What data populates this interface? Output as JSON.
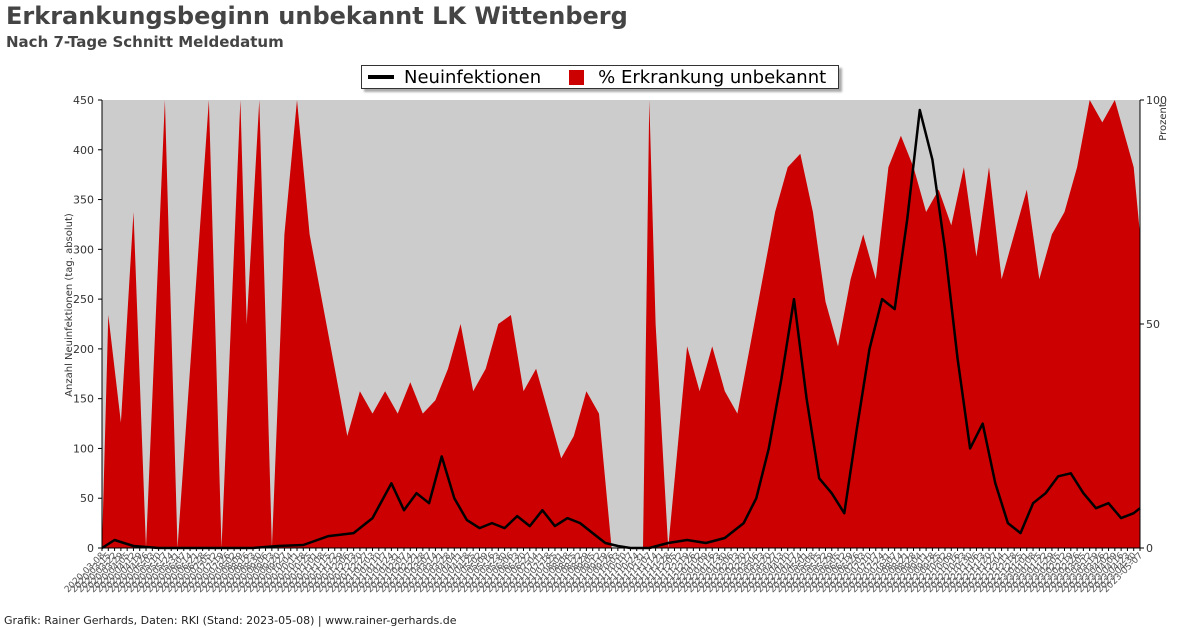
{
  "header": {
    "title": "Erkrankungsbeginn unbekannt LK Wittenberg",
    "subtitle": "Nach 7-Tage Schnitt Meldedatum"
  },
  "footer": {
    "credit": "Grafik: Rainer Gerhards, Daten: RKI (Stand: 2023-05-08) | www.rainer-gerhards.de"
  },
  "chart_data": {
    "type": "bar",
    "title": "Erkrankungsbeginn unbekannt LK Wittenberg",
    "subtitle": "Nach 7-Tage Schnitt Meldedatum",
    "ylabel": "Anzahl Neuinfektionen (tag. absolut)",
    "y2label": "Prozent",
    "ylim": [
      0,
      450
    ],
    "y2lim": [
      0,
      100
    ],
    "yticks": [
      0,
      50,
      100,
      150,
      200,
      250,
      300,
      350,
      400,
      450
    ],
    "y2ticks": [
      0,
      50,
      100
    ],
    "xlim_dates": [
      "2020-03-08",
      "2023-05-07"
    ],
    "grid": false,
    "legend_position": "top-center",
    "colors": {
      "line": "#000000",
      "area": "#cc0000",
      "plot_background": "#cccccc"
    },
    "series": [
      {
        "name": "Neuinfektionen",
        "kind": "line",
        "axis": "left",
        "points": [
          [
            "2020-03-08",
            0
          ],
          [
            "2020-03-22",
            8
          ],
          [
            "2020-04-12",
            2
          ],
          [
            "2020-05-10",
            0
          ],
          [
            "2020-08-23",
            0
          ],
          [
            "2020-09-20",
            2
          ],
          [
            "2020-10-18",
            3
          ],
          [
            "2020-11-15",
            12
          ],
          [
            "2020-12-13",
            15
          ],
          [
            "2021-01-03",
            30
          ],
          [
            "2021-01-24",
            65
          ],
          [
            "2021-02-07",
            38
          ],
          [
            "2021-02-21",
            55
          ],
          [
            "2021-03-07",
            45
          ],
          [
            "2021-03-21",
            92
          ],
          [
            "2021-04-04",
            50
          ],
          [
            "2021-04-18",
            28
          ],
          [
            "2021-05-02",
            20
          ],
          [
            "2021-05-16",
            25
          ],
          [
            "2021-05-30",
            20
          ],
          [
            "2021-06-13",
            32
          ],
          [
            "2021-06-27",
            22
          ],
          [
            "2021-07-11",
            38
          ],
          [
            "2021-07-25",
            22
          ],
          [
            "2021-08-08",
            30
          ],
          [
            "2021-08-22",
            25
          ],
          [
            "2021-09-05",
            15
          ],
          [
            "2021-09-19",
            5
          ],
          [
            "2021-10-03",
            2
          ],
          [
            "2021-10-17",
            0
          ],
          [
            "2021-11-07",
            0
          ],
          [
            "2021-11-28",
            5
          ],
          [
            "2021-12-19",
            8
          ],
          [
            "2022-01-09",
            5
          ],
          [
            "2022-01-30",
            10
          ],
          [
            "2022-02-20",
            25
          ],
          [
            "2022-03-06",
            50
          ],
          [
            "2022-03-20",
            100
          ],
          [
            "2022-04-03",
            170
          ],
          [
            "2022-04-17",
            250
          ],
          [
            "2022-05-01",
            150
          ],
          [
            "2022-05-15",
            70
          ],
          [
            "2022-05-29",
            55
          ],
          [
            "2022-06-12",
            35
          ],
          [
            "2022-06-26",
            120
          ],
          [
            "2022-07-10",
            200
          ],
          [
            "2022-07-24",
            250
          ],
          [
            "2022-08-07",
            240
          ],
          [
            "2022-08-21",
            330
          ],
          [
            "2022-09-04",
            440
          ],
          [
            "2022-09-18",
            390
          ],
          [
            "2022-10-02",
            300
          ],
          [
            "2022-10-16",
            190
          ],
          [
            "2022-10-30",
            100
          ],
          [
            "2022-11-13",
            125
          ],
          [
            "2022-11-27",
            65
          ],
          [
            "2022-12-11",
            25
          ],
          [
            "2022-12-25",
            15
          ],
          [
            "2023-01-08",
            45
          ],
          [
            "2023-01-22",
            55
          ],
          [
            "2023-02-05",
            72
          ],
          [
            "2023-02-19",
            75
          ],
          [
            "2023-03-05",
            55
          ],
          [
            "2023-03-19",
            40
          ],
          [
            "2023-04-02",
            45
          ],
          [
            "2023-04-16",
            30
          ],
          [
            "2023-04-30",
            35
          ],
          [
            "2023-05-07",
            40
          ]
        ]
      },
      {
        "name": "% Erkrankung unbekannt",
        "kind": "area",
        "axis": "right",
        "points": [
          [
            "2020-03-08",
            0
          ],
          [
            "2020-03-15",
            52
          ],
          [
            "2020-03-29",
            28
          ],
          [
            "2020-04-12",
            75
          ],
          [
            "2020-04-26",
            0
          ],
          [
            "2020-05-17",
            100
          ],
          [
            "2020-05-31",
            0
          ],
          [
            "2020-07-05",
            100
          ],
          [
            "2020-07-19",
            0
          ],
          [
            "2020-08-09",
            100
          ],
          [
            "2020-08-16",
            50
          ],
          [
            "2020-08-30",
            100
          ],
          [
            "2020-09-13",
            0
          ],
          [
            "2020-09-27",
            70
          ],
          [
            "2020-10-11",
            100
          ],
          [
            "2020-10-25",
            70
          ],
          [
            "2020-11-08",
            55
          ],
          [
            "2020-11-22",
            40
          ],
          [
            "2020-12-06",
            25
          ],
          [
            "2020-12-20",
            35
          ],
          [
            "2021-01-03",
            30
          ],
          [
            "2021-01-17",
            35
          ],
          [
            "2021-01-31",
            30
          ],
          [
            "2021-02-14",
            37
          ],
          [
            "2021-02-28",
            30
          ],
          [
            "2021-03-14",
            33
          ],
          [
            "2021-03-28",
            40
          ],
          [
            "2021-04-11",
            50
          ],
          [
            "2021-04-25",
            35
          ],
          [
            "2021-05-09",
            40
          ],
          [
            "2021-05-23",
            50
          ],
          [
            "2021-06-06",
            52
          ],
          [
            "2021-06-20",
            35
          ],
          [
            "2021-07-04",
            40
          ],
          [
            "2021-07-18",
            30
          ],
          [
            "2021-08-01",
            20
          ],
          [
            "2021-08-15",
            25
          ],
          [
            "2021-08-29",
            35
          ],
          [
            "2021-09-12",
            30
          ],
          [
            "2021-09-26",
            0
          ],
          [
            "2021-10-31",
            0
          ],
          [
            "2021-11-07",
            100
          ],
          [
            "2021-11-14",
            50
          ],
          [
            "2021-11-28",
            0
          ],
          [
            "2021-12-19",
            45
          ],
          [
            "2022-01-02",
            35
          ],
          [
            "2022-01-16",
            45
          ],
          [
            "2022-01-30",
            35
          ],
          [
            "2022-02-13",
            30
          ],
          [
            "2022-02-27",
            45
          ],
          [
            "2022-03-13",
            60
          ],
          [
            "2022-03-27",
            75
          ],
          [
            "2022-04-10",
            85
          ],
          [
            "2022-04-24",
            88
          ],
          [
            "2022-05-08",
            75
          ],
          [
            "2022-05-22",
            55
          ],
          [
            "2022-06-05",
            45
          ],
          [
            "2022-06-19",
            60
          ],
          [
            "2022-07-03",
            70
          ],
          [
            "2022-07-17",
            60
          ],
          [
            "2022-07-31",
            85
          ],
          [
            "2022-08-14",
            92
          ],
          [
            "2022-08-28",
            85
          ],
          [
            "2022-09-11",
            75
          ],
          [
            "2022-09-25",
            80
          ],
          [
            "2022-10-09",
            72
          ],
          [
            "2022-10-23",
            85
          ],
          [
            "2022-11-06",
            65
          ],
          [
            "2022-11-20",
            85
          ],
          [
            "2022-12-04",
            60
          ],
          [
            "2022-12-18",
            70
          ],
          [
            "2023-01-01",
            80
          ],
          [
            "2023-01-15",
            60
          ],
          [
            "2023-01-29",
            70
          ],
          [
            "2023-02-12",
            75
          ],
          [
            "2023-02-26",
            85
          ],
          [
            "2023-03-12",
            100
          ],
          [
            "2023-03-26",
            95
          ],
          [
            "2023-04-09",
            100
          ],
          [
            "2023-04-23",
            90
          ],
          [
            "2023-04-30",
            85
          ],
          [
            "2023-05-07",
            70
          ]
        ]
      }
    ]
  }
}
